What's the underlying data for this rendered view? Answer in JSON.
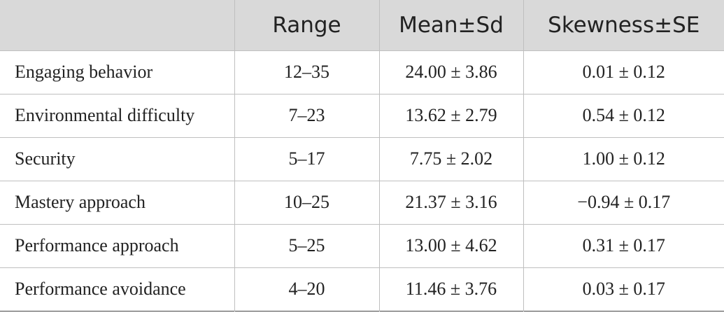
{
  "table": {
    "header": [
      "Range",
      "Mean±Sd",
      "Skewness±SE"
    ],
    "rows": [
      [
        "Engaging behavior",
        "12–35",
        "24.00 ± 3.86",
        "0.01 ± 0.12"
      ],
      [
        "Environmental difficulty",
        "7–23",
        "13.62 ± 2.79",
        "0.54 ± 0.12"
      ],
      [
        "Security",
        "5–17",
        "7.75 ± 2.02",
        "1.00 ± 0.12"
      ],
      [
        "Mastery approach",
        "10–25",
        "21.37 ± 3.16",
        "−0.94 ± 0.17"
      ],
      [
        "Performance approach",
        "5–25",
        "13.00 ± 4.62",
        "0.31 ± 0.17"
      ],
      [
        "Performance avoidance",
        "4–20",
        "11.46 ± 3.76",
        "0.03 ± 0.17"
      ]
    ]
  }
}
